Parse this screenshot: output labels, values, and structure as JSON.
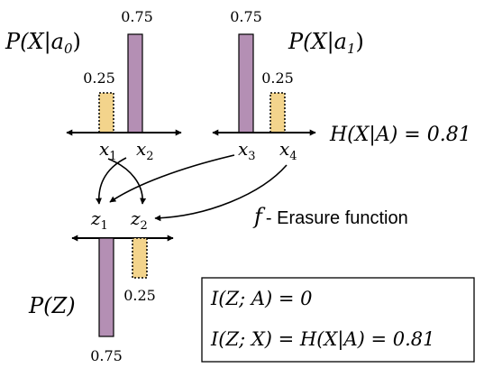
{
  "dist_a0": {
    "label": "P(X|a",
    "sub": "0",
    "close": ")",
    "bars": [
      {
        "value_label": "0.25",
        "value": 0.25,
        "style": "dashed"
      },
      {
        "value_label": "0.75",
        "value": 0.75,
        "style": "solid"
      }
    ],
    "ticks": [
      {
        "var": "x",
        "sub": "1"
      },
      {
        "var": "x",
        "sub": "2"
      }
    ]
  },
  "dist_a1": {
    "label": "P(X|a",
    "sub": "1",
    "close": ")",
    "bars": [
      {
        "value_label": "0.75",
        "value": 0.75,
        "style": "solid"
      },
      {
        "value_label": "0.25",
        "value": 0.25,
        "style": "dashed"
      }
    ],
    "ticks": [
      {
        "var": "x",
        "sub": "3"
      },
      {
        "var": "x",
        "sub": "4"
      }
    ]
  },
  "entropy_label": "H(X|A) = 0.81",
  "function_label": {
    "symbol": "f",
    "text": "- Erasure function"
  },
  "dist_z": {
    "label": "P(Z)",
    "bars": [
      {
        "value_label": "0.75",
        "value": 0.75,
        "style": "solid"
      },
      {
        "value_label": "0.25",
        "value": 0.25,
        "style": "dashed"
      }
    ],
    "ticks": [
      {
        "var": "z",
        "sub": "1"
      },
      {
        "var": "z",
        "sub": "2"
      }
    ]
  },
  "info_box": {
    "line1": "I(Z; A) = 0",
    "line2": "I(Z; X) = H(X|A) = 0.81"
  },
  "colors": {
    "solid_bar": "#b48fb4",
    "dashed_bar": "#f3d48c",
    "stroke": "#000000"
  }
}
